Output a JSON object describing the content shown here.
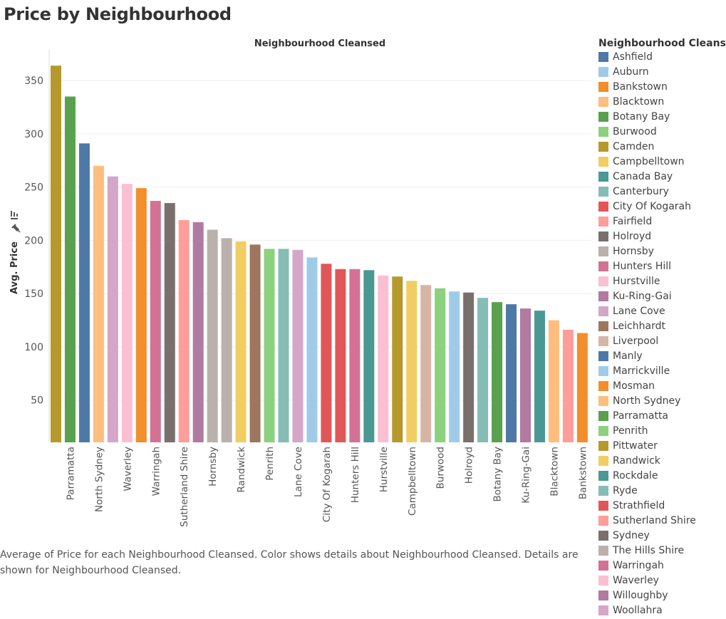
{
  "page": {
    "title": "Price by Neighbourhood",
    "caption": "Average of Price for each Neighbourhood Cleansed.  Color shows details about Neighbourhood Cleansed.  Details are shown for Neighbourhood Cleansed."
  },
  "chart_data": {
    "type": "bar",
    "title": "Neighbourhood Cleansed",
    "xlabel": "",
    "ylabel": "Avg. Price",
    "ylim": [
      0,
      370
    ],
    "yticks": [
      50,
      100,
      150,
      200,
      250,
      300,
      350
    ],
    "grid": true,
    "categories": [
      "Pittwater",
      "Parramatta",
      "Manly",
      "North Sydney",
      "Woollahra",
      "Waverley",
      "Mosman",
      "Warringah",
      "Sydney",
      "Sutherland Shire",
      "Willoughby",
      "Hornsby",
      "The Hills Shire",
      "Randwick",
      "Leichhardt",
      "Penrith",
      "Ryde",
      "Lane Cove",
      "Marrickville",
      "City Of Kogarah",
      "Strathfield",
      "Hunters Hill",
      "Rockdale",
      "Hurstville",
      "Camden",
      "Campbelltown",
      "Liverpool",
      "Burwood",
      "Auburn",
      "Holroyd",
      "Canterbury",
      "Botany Bay",
      "Ashfield",
      "Ku-Ring-Gai",
      "Canada Bay",
      "Blacktown",
      "Fairfield",
      "Bankstown"
    ],
    "category_labels_shown": [
      "",
      "Parramatta",
      "",
      "North Sydney",
      "",
      "Waverley",
      "",
      "Warringah",
      "",
      "Sutherland Shire",
      "",
      "Hornsby",
      "",
      "Randwick",
      "",
      "Penrith",
      "",
      "Lane Cove",
      "",
      "City Of Kogarah",
      "",
      "Hunters Hill",
      "",
      "Hurstville",
      "",
      "Campbelltown",
      "",
      "Burwood",
      "",
      "Holroyd",
      "",
      "Botany Bay",
      "",
      "Ku-Ring-Gai",
      "",
      "Blacktown",
      "",
      "Bankstown"
    ],
    "values": [
      364,
      335,
      291,
      270,
      260,
      253,
      249,
      237,
      235,
      219,
      217,
      210,
      202,
      199,
      196,
      192,
      192,
      191,
      184,
      178,
      173,
      173,
      172,
      167,
      166,
      162,
      158,
      155,
      152,
      151,
      146,
      142,
      140,
      136,
      134,
      125,
      116,
      113
    ],
    "legend_position": "right"
  },
  "legend": {
    "title": "Neighbourhood Cleansed",
    "items": [
      {
        "label": "Ashfield",
        "color": "#4e79a7"
      },
      {
        "label": "Auburn",
        "color": "#a0cbe8"
      },
      {
        "label": "Bankstown",
        "color": "#f28e2b"
      },
      {
        "label": "Blacktown",
        "color": "#ffbe7d"
      },
      {
        "label": "Botany Bay",
        "color": "#59a14f"
      },
      {
        "label": "Burwood",
        "color": "#8cd17d"
      },
      {
        "label": "Camden",
        "color": "#b6992d"
      },
      {
        "label": "Campbelltown",
        "color": "#f1ce63"
      },
      {
        "label": "Canada Bay",
        "color": "#499894"
      },
      {
        "label": "Canterbury",
        "color": "#86bcb6"
      },
      {
        "label": "City Of Kogarah",
        "color": "#e15759"
      },
      {
        "label": "Fairfield",
        "color": "#ff9d9a"
      },
      {
        "label": "Holroyd",
        "color": "#79706e"
      },
      {
        "label": "Hornsby",
        "color": "#bab0ac"
      },
      {
        "label": "Hunters Hill",
        "color": "#d37295"
      },
      {
        "label": "Hurstville",
        "color": "#fabfd2"
      },
      {
        "label": "Ku-Ring-Gai",
        "color": "#b07aa1"
      },
      {
        "label": "Lane Cove",
        "color": "#d4a6c8"
      },
      {
        "label": "Leichhardt",
        "color": "#9d7660"
      },
      {
        "label": "Liverpool",
        "color": "#d7b5a6"
      },
      {
        "label": "Manly",
        "color": "#4e79a7"
      },
      {
        "label": "Marrickville",
        "color": "#a0cbe8"
      },
      {
        "label": "Mosman",
        "color": "#f28e2b"
      },
      {
        "label": "North Sydney",
        "color": "#ffbe7d"
      },
      {
        "label": "Parramatta",
        "color": "#59a14f"
      },
      {
        "label": "Penrith",
        "color": "#8cd17d"
      },
      {
        "label": "Pittwater",
        "color": "#b6992d"
      },
      {
        "label": "Randwick",
        "color": "#f1ce63"
      },
      {
        "label": "Rockdale",
        "color": "#499894"
      },
      {
        "label": "Ryde",
        "color": "#86bcb6"
      },
      {
        "label": "Strathfield",
        "color": "#e15759"
      },
      {
        "label": "Sutherland Shire",
        "color": "#ff9d9a"
      },
      {
        "label": "Sydney",
        "color": "#79706e"
      },
      {
        "label": "The Hills Shire",
        "color": "#bab0ac"
      },
      {
        "label": "Warringah",
        "color": "#d37295"
      },
      {
        "label": "Waverley",
        "color": "#fabfd2"
      },
      {
        "label": "Willoughby",
        "color": "#b07aa1"
      },
      {
        "label": "Woollahra",
        "color": "#d4a6c8"
      }
    ]
  }
}
